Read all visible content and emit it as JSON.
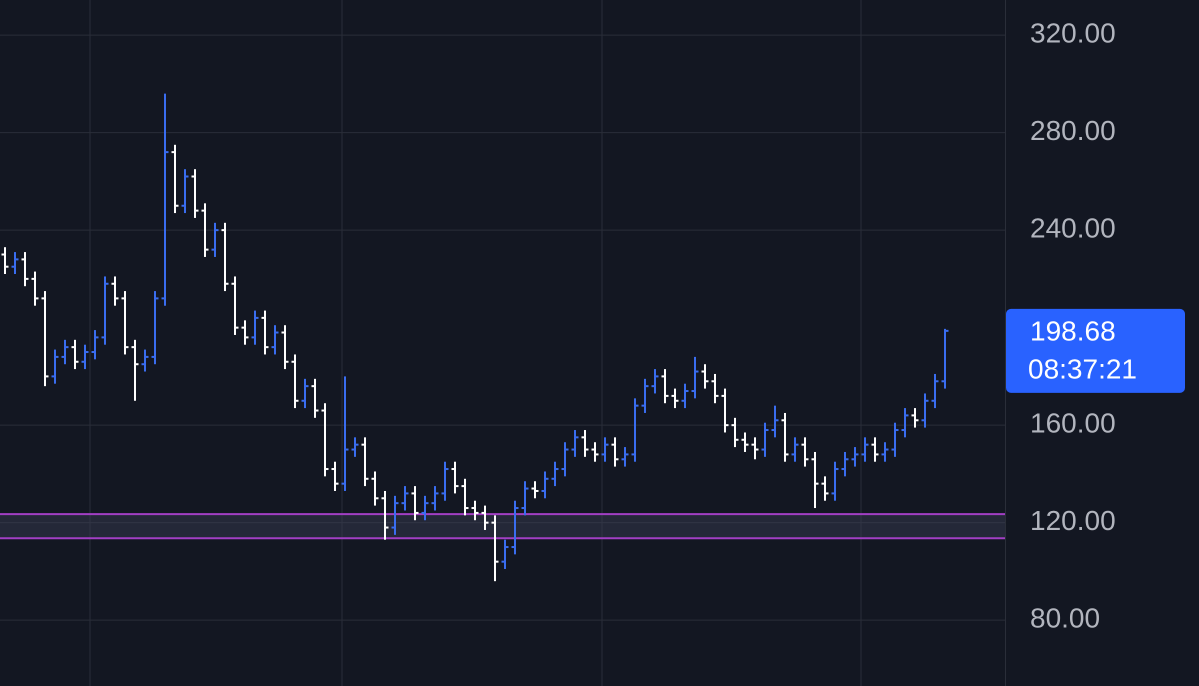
{
  "chart_data": {
    "type": "ohlc",
    "up_color": "#3a6df0",
    "down_color": "#ffffff",
    "xlim": [
      -0.5,
      100
    ],
    "xticks": [
      8.5,
      33.7,
      59.7,
      85.6
    ],
    "ylim": [
      53,
      334.4
    ],
    "yticks": [
      {
        "value": 80,
        "label": "80.00"
      },
      {
        "value": 120,
        "label": "120.00"
      },
      {
        "value": 160,
        "label": "160.00"
      },
      {
        "value": 240,
        "label": "240.00"
      },
      {
        "value": 280,
        "label": "280.00"
      },
      {
        "value": 320,
        "label": "320.00"
      }
    ],
    "grid": true,
    "hlines": [
      {
        "value": 123.5,
        "color": "#a23fc4"
      },
      {
        "value": 113.6,
        "color": "#a23fc4"
      }
    ],
    "last_price": 198.68,
    "countdown": "08:37:21",
    "open": [
      230,
      225,
      228,
      220,
      212,
      180,
      188,
      192,
      186,
      190,
      196,
      218,
      212,
      192,
      185,
      188,
      212,
      272,
      250,
      262,
      248,
      232,
      240,
      218,
      200,
      196,
      204,
      192,
      198,
      186,
      170,
      176,
      166,
      142,
      136,
      150,
      152,
      138,
      130,
      118,
      128,
      132,
      124,
      128,
      132,
      142,
      135,
      126,
      124,
      120,
      104,
      110,
      126,
      134,
      133,
      138,
      142,
      150,
      155,
      150,
      148,
      152,
      146,
      148,
      168,
      176,
      180,
      172,
      170,
      174,
      182,
      178,
      172,
      160,
      154,
      152,
      150,
      158,
      162,
      148,
      152,
      146,
      136,
      132,
      142,
      146,
      148,
      152,
      148,
      150,
      158,
      164,
      162,
      170,
      178
    ],
    "high": [
      233,
      231,
      231,
      223,
      215,
      191,
      195,
      195,
      193,
      199,
      221,
      221,
      215,
      195,
      191,
      215,
      296,
      275,
      265,
      265,
      251,
      243,
      243,
      221,
      203,
      207,
      207,
      201,
      201,
      189,
      179,
      179,
      169,
      145,
      180,
      155,
      155,
      141,
      133,
      131,
      135,
      135,
      131,
      135,
      145,
      145,
      138,
      129,
      127,
      123,
      113,
      129,
      137,
      137,
      141,
      145,
      153,
      158,
      158,
      153,
      155,
      155,
      151,
      171,
      179,
      183,
      183,
      175,
      177,
      188,
      185,
      181,
      175,
      163,
      157,
      155,
      161,
      168,
      165,
      155,
      155,
      149,
      139,
      145,
      149,
      151,
      155,
      155,
      153,
      161,
      167,
      167,
      173,
      181,
      199.5
    ],
    "low": [
      222,
      222,
      217,
      209,
      176,
      177,
      185,
      183,
      183,
      187,
      193,
      209,
      189,
      170,
      182,
      185,
      209,
      247,
      247,
      245,
      229,
      229,
      215,
      197,
      193,
      193,
      189,
      189,
      183,
      167,
      167,
      163,
      139,
      133,
      133,
      147,
      135,
      127,
      113,
      115,
      125,
      121,
      121,
      125,
      129,
      132,
      123,
      121,
      117,
      96,
      101,
      107,
      123,
      130,
      130,
      135,
      139,
      147,
      147,
      145,
      145,
      143,
      143,
      145,
      165,
      173,
      169,
      167,
      167,
      171,
      175,
      169,
      157,
      151,
      149,
      146,
      147,
      155,
      145,
      145,
      143,
      126,
      129,
      129,
      139,
      143,
      145,
      145,
      145,
      147,
      155,
      159,
      159,
      167,
      175
    ],
    "close": [
      225,
      228,
      220,
      212,
      180,
      188,
      192,
      186,
      190,
      196,
      218,
      212,
      192,
      185,
      188,
      212,
      272,
      250,
      262,
      248,
      232,
      240,
      218,
      200,
      196,
      204,
      192,
      198,
      186,
      170,
      176,
      166,
      142,
      136,
      150,
      152,
      138,
      130,
      118,
      128,
      132,
      124,
      128,
      132,
      142,
      135,
      126,
      124,
      120,
      104,
      110,
      126,
      134,
      133,
      138,
      142,
      150,
      155,
      150,
      148,
      152,
      146,
      148,
      168,
      176,
      180,
      172,
      170,
      174,
      182,
      178,
      172,
      160,
      154,
      152,
      150,
      158,
      162,
      148,
      152,
      146,
      136,
      132,
      142,
      146,
      148,
      152,
      148,
      150,
      158,
      164,
      162,
      170,
      178,
      198.68
    ]
  }
}
